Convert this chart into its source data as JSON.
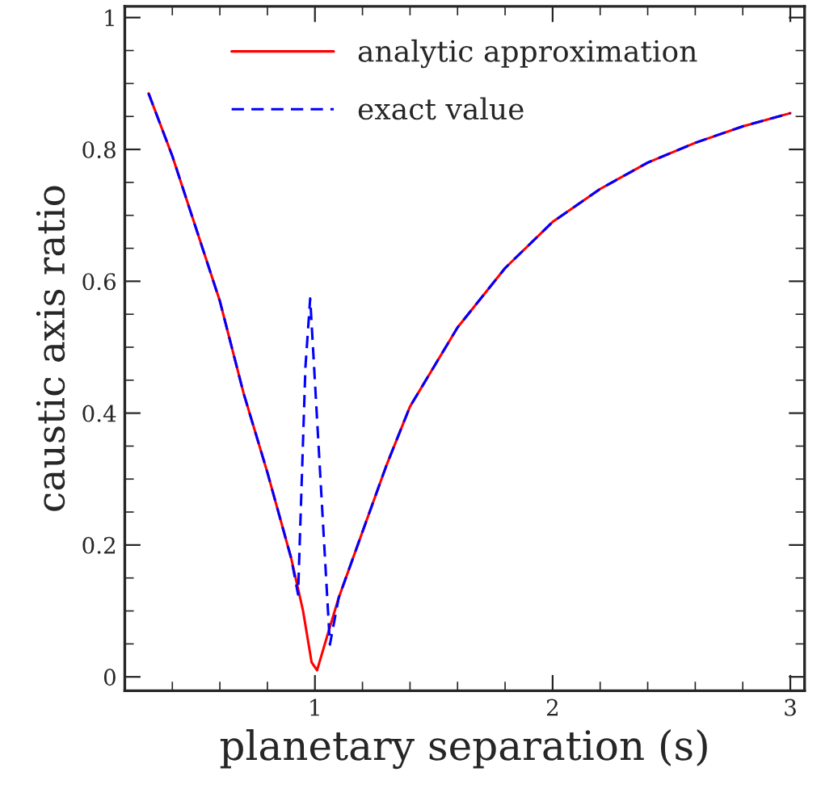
{
  "chart_data": {
    "type": "line",
    "xlabel": "planetary separation (s)",
    "ylabel": "caustic axis ratio",
    "xlim": [
      0.2,
      3.06
    ],
    "ylim": [
      -0.021,
      1.017
    ],
    "xticks": [
      1,
      2,
      3
    ],
    "yticks": [
      0,
      0.2,
      0.4,
      0.6,
      0.8,
      1
    ],
    "grid": false,
    "legend": "top",
    "marker": "none",
    "series": [
      {
        "name": "analytic approximation",
        "color": "#ff0000",
        "line_style": "solid",
        "x": [
          0.3,
          0.4,
          0.5,
          0.6,
          0.7,
          0.8,
          0.9,
          0.95,
          0.98,
          0.986,
          1.009,
          1.05,
          1.1,
          1.2,
          1.3,
          1.4,
          1.5,
          1.6,
          1.8,
          2.0,
          2.2,
          2.4,
          2.6,
          2.8,
          3.0
        ],
        "values": [
          0.885,
          0.79,
          0.68,
          0.57,
          0.43,
          0.31,
          0.18,
          0.1,
          0.035,
          0.022,
          0.01,
          0.06,
          0.12,
          0.22,
          0.32,
          0.41,
          0.47,
          0.53,
          0.62,
          0.69,
          0.74,
          0.78,
          0.81,
          0.835,
          0.855
        ]
      },
      {
        "name": "exact value",
        "color": "#0000ff",
        "line_style": "dashed",
        "x": [
          0.3,
          0.4,
          0.5,
          0.6,
          0.7,
          0.8,
          0.9,
          0.929,
          0.96,
          0.98,
          1.063,
          1.1,
          1.2,
          1.3,
          1.4,
          1.5,
          1.6,
          1.8,
          2.0,
          2.2,
          2.4,
          2.6,
          2.8,
          3.0
        ],
        "values": [
          0.885,
          0.79,
          0.68,
          0.57,
          0.43,
          0.31,
          0.18,
          0.125,
          0.47,
          0.574,
          0.049,
          0.12,
          0.22,
          0.32,
          0.41,
          0.47,
          0.53,
          0.62,
          0.69,
          0.74,
          0.78,
          0.81,
          0.835,
          0.855
        ]
      }
    ]
  }
}
